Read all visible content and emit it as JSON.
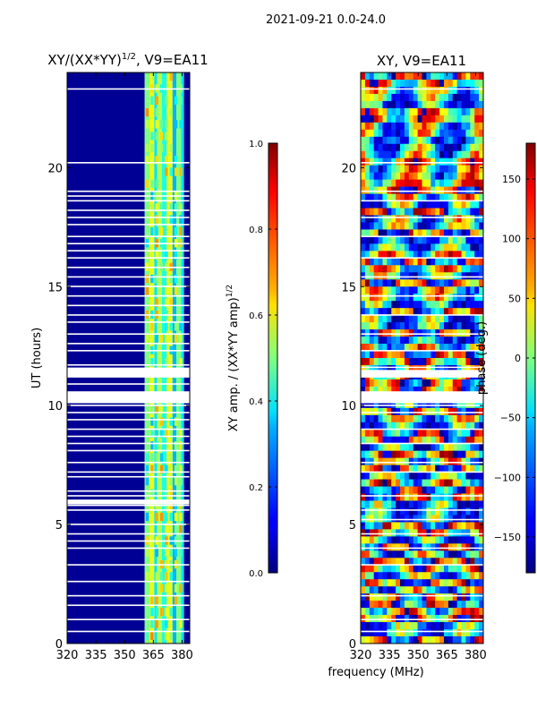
{
  "suptitle": "2021-09-21 0.0-24.0",
  "xlabel_common": "frequency (MHz)",
  "chart_data": [
    {
      "type": "heatmap",
      "title_main": "XY/(XX*YY)",
      "title_exp": "1/2",
      "title_suffix": ", V9=EA11",
      "ylabel": "UT (hours)",
      "xlim": [
        320,
        384
      ],
      "ylim": [
        0,
        24
      ],
      "xticks": [
        "320",
        "335",
        "350",
        "365",
        "380"
      ],
      "xtick_values": [
        320,
        335,
        350,
        365,
        380
      ],
      "yticks": [
        "0",
        "5",
        "10",
        "15",
        "20"
      ],
      "ytick_values": [
        0,
        5,
        10,
        15,
        20
      ],
      "colorbar": {
        "label_main": "XY amp. / (XX*YY amp)",
        "label_exp": "1/2",
        "range": [
          0.0,
          1.0
        ],
        "ticks": [
          "0.0",
          "0.2",
          "0.4",
          "0.6",
          "0.8",
          "1.0"
        ],
        "tick_values": [
          0.0,
          0.2,
          0.4,
          0.6,
          0.8,
          1.0
        ]
      },
      "bands": [
        {
          "f0": 320,
          "f1": 360.5,
          "value": 0.02
        },
        {
          "f0": 360.5,
          "f1": 363,
          "value": 0.5
        },
        {
          "f0": 363,
          "f1": 365.5,
          "value": 0.6
        },
        {
          "f0": 365.5,
          "f1": 367,
          "value": 0.35
        },
        {
          "f0": 367,
          "f1": 369.5,
          "value": 0.55
        },
        {
          "f0": 369.5,
          "f1": 372,
          "value": 0.4
        },
        {
          "f0": 372,
          "f1": 375,
          "value": 0.6
        },
        {
          "f0": 375,
          "f1": 377,
          "value": 0.3
        },
        {
          "f0": 377,
          "f1": 379.5,
          "value": 0.5
        },
        {
          "f0": 379.5,
          "f1": 381,
          "value": 0.35
        },
        {
          "f0": 381,
          "f1": 384,
          "value": 0.02
        }
      ],
      "flag_hours": [
        0.5,
        1.0,
        1.6,
        2.0,
        2.6,
        3.3,
        4.0,
        4.3,
        4.6,
        5.0,
        5.6,
        5.8,
        6.2,
        6.4,
        7.0,
        7.2,
        7.6,
        8.1,
        8.4,
        8.7,
        9.0,
        9.4,
        9.7,
        10.0,
        10.2,
        10.9,
        11.2,
        11.3,
        11.5,
        11.7,
        12.3,
        12.6,
        13.0,
        13.5,
        13.8,
        14.2,
        14.6,
        15.0,
        15.4,
        15.8,
        16.2,
        16.5,
        16.8,
        17.1,
        17.6,
        17.9,
        18.2,
        18.6,
        18.8,
        19.0,
        20.2,
        23.3
      ],
      "flag_bands": [
        [
          10.1,
          10.6
        ],
        [
          11.2,
          11.6
        ],
        [
          5.85,
          6.05
        ]
      ]
    },
    {
      "type": "heatmap",
      "title_main": "XY, V9=EA11",
      "ylabel": "",
      "xlim": [
        320,
        384
      ],
      "ylim": [
        0,
        24
      ],
      "xticks": [
        "320",
        "335",
        "350",
        "365",
        "380"
      ],
      "xtick_values": [
        320,
        335,
        350,
        365,
        380
      ],
      "yticks": [
        "0",
        "5",
        "10",
        "15",
        "20"
      ],
      "ytick_values": [
        0,
        5,
        10,
        15,
        20
      ],
      "colorbar": {
        "label_main": "phase (deg.)",
        "range": [
          -180,
          180
        ],
        "ticks": [
          "−150",
          "−100",
          "−50",
          "0",
          "50",
          "100",
          "150"
        ],
        "tick_values": [
          -150,
          -100,
          -50,
          0,
          50,
          100,
          150
        ]
      },
      "flag_hours": [
        0.5,
        1.0,
        2.0,
        3.3,
        4.0,
        4.6,
        5.2,
        5.6,
        6.2,
        7.2,
        7.6,
        8.4,
        9.0,
        9.7,
        10.0,
        10.4,
        11.2,
        11.6,
        12.3,
        13.0,
        13.8,
        14.6,
        15.4,
        16.2,
        17.1,
        17.9,
        18.6,
        19.0,
        20.2,
        23.3
      ],
      "flag_bands": [
        [
          10.1,
          10.6
        ],
        [
          11.2,
          11.5
        ]
      ]
    }
  ]
}
